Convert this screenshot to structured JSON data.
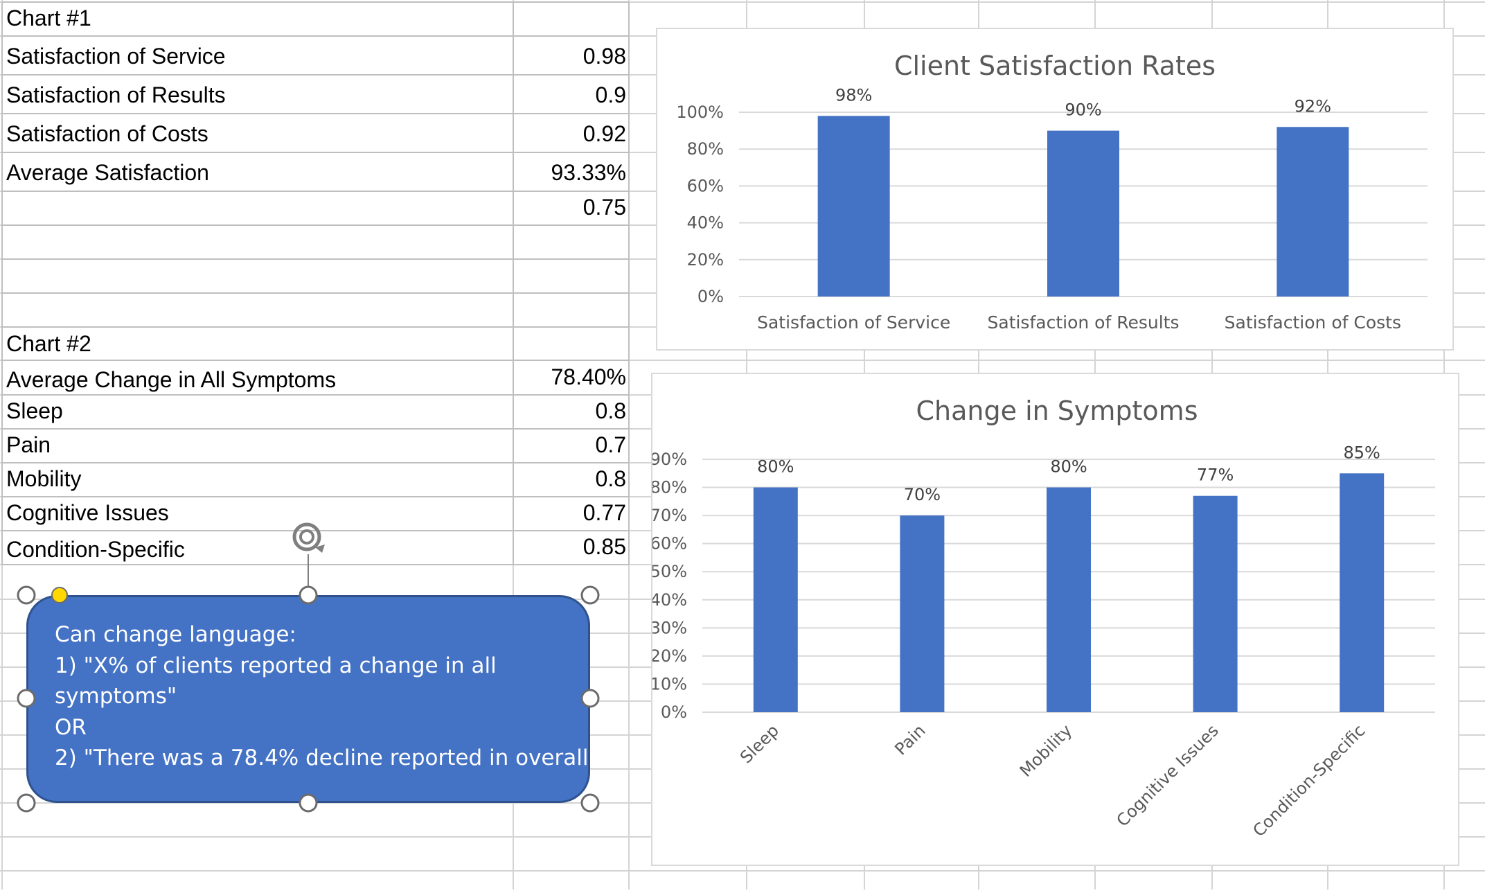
{
  "sheet": {
    "rows": [
      {
        "label": "Chart #1",
        "value": ""
      },
      {
        "label": "Satisfaction of Service",
        "value": "0.98"
      },
      {
        "label": "Satisfaction of Results",
        "value": "0.9"
      },
      {
        "label": "Satisfaction of Costs",
        "value": "0.92"
      },
      {
        "label": "Average Satisfaction",
        "value": "93.33%"
      },
      {
        "label": "",
        "value": "0.75"
      },
      {
        "label": "Chart #2",
        "value": ""
      },
      {
        "label": "Average Change in All Symptoms",
        "value": "78.40%"
      },
      {
        "label": "Sleep",
        "value": "0.8"
      },
      {
        "label": "Pain",
        "value": "0.7"
      },
      {
        "label": "Mobility",
        "value": "0.8"
      },
      {
        "label": "Cognitive Issues",
        "value": "0.77"
      },
      {
        "label": "Condition-Specific",
        "value": "0.85"
      }
    ]
  },
  "textbox": {
    "lines": [
      "Can change language:",
      "1) \"X% of clients reported a change in all",
      "symptoms\"",
      "OR",
      "2) \"There was a 78.4% decline reported in overall"
    ]
  },
  "colors": {
    "bar": "#4472c4",
    "shape_border": "#2f528f",
    "handle_yellow": "#ffd800"
  },
  "chart_data": [
    {
      "type": "bar",
      "title": "Client Satisfaction Rates",
      "categories": [
        "Satisfaction of Service",
        "Satisfaction of Results",
        "Satisfaction of Costs"
      ],
      "values": [
        0.98,
        0.9,
        0.92
      ],
      "data_labels": [
        "98%",
        "90%",
        "92%"
      ],
      "y_ticks": [
        "0%",
        "20%",
        "40%",
        "60%",
        "80%",
        "100%"
      ],
      "ylim": [
        0,
        1
      ],
      "grid": true,
      "legend": "none"
    },
    {
      "type": "bar",
      "title": "Change in Symptoms",
      "categories": [
        "Sleep",
        "Pain",
        "Mobility",
        "Cognitive Issues",
        "Condition-Specific"
      ],
      "values": [
        0.8,
        0.7,
        0.8,
        0.77,
        0.85
      ],
      "data_labels": [
        "80%",
        "70%",
        "80%",
        "77%",
        "85%"
      ],
      "y_ticks": [
        "0%",
        "10%",
        "20%",
        "30%",
        "40%",
        "50%",
        "60%",
        "70%",
        "80%",
        "90%"
      ],
      "ylim": [
        0,
        0.9
      ],
      "grid": true,
      "legend": "none",
      "x_label_rotation": "-45"
    }
  ]
}
